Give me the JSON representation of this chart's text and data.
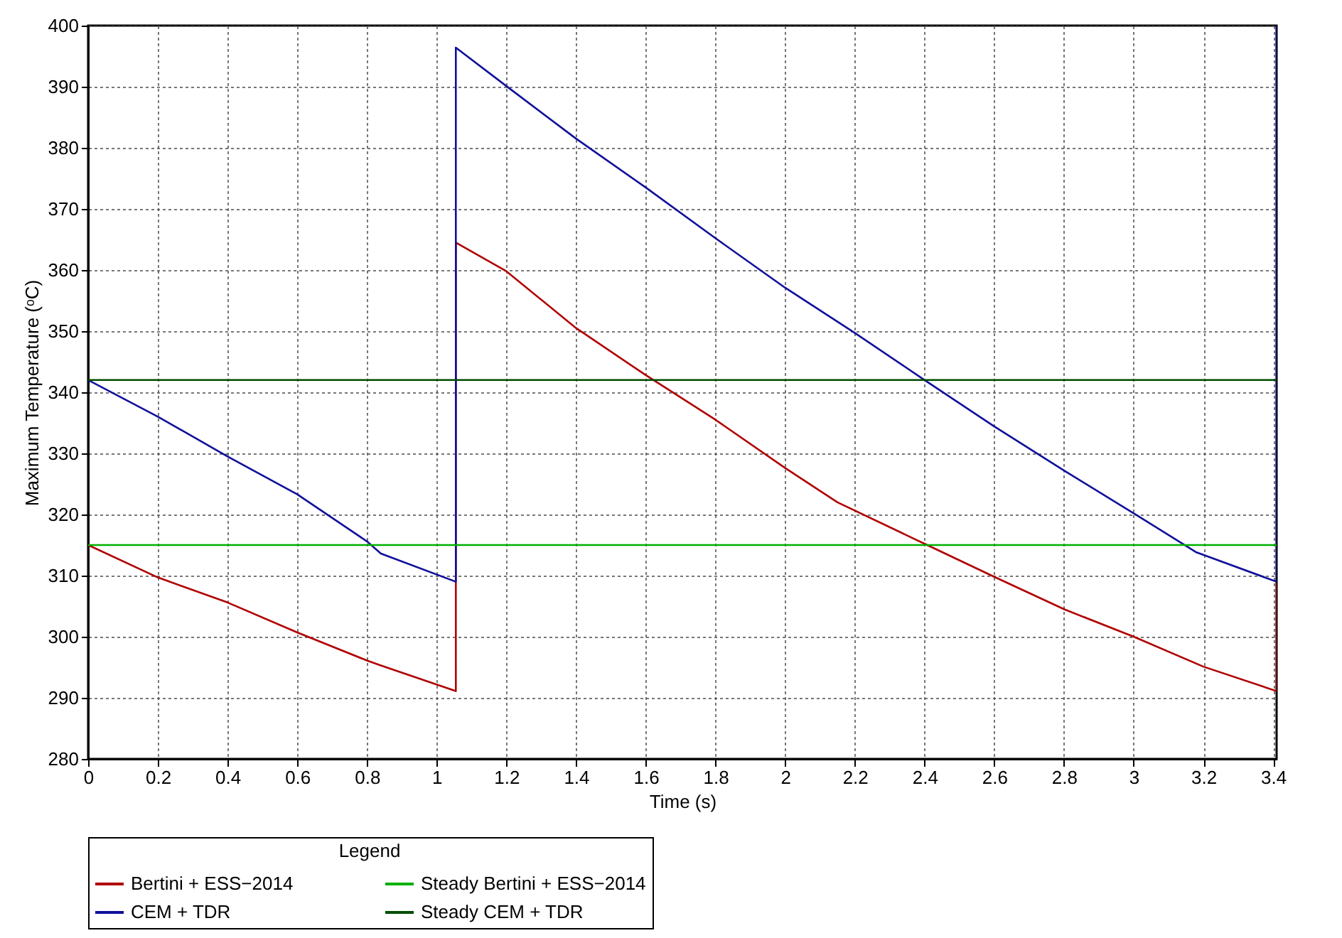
{
  "chart_data": {
    "type": "line",
    "xlabel": "Time (s)",
    "ylabel": "Maximum Temperature (ᵒC)",
    "legend_title": "Legend",
    "legend": "bottom",
    "grid": true,
    "line_style": "solid",
    "marker": "none",
    "xlim": [
      0,
      3.41
    ],
    "xticks": [
      0,
      0.2,
      0.4,
      0.6,
      0.8,
      1,
      1.2,
      1.4,
      1.6,
      1.8,
      2,
      2.2,
      2.4,
      2.6,
      2.8,
      3,
      3.2,
      3.4
    ],
    "ylim": [
      280,
      400
    ],
    "yticks": [
      280,
      290,
      300,
      310,
      320,
      330,
      340,
      350,
      360,
      370,
      380,
      390,
      400
    ],
    "series": [
      {
        "name": "Bertini + ESS−2014",
        "color": "#b00000",
        "x": [
          0,
          0.2,
          0.4,
          0.6,
          0.8,
          0.84,
          1.055,
          1.055,
          1.2,
          1.4,
          1.6,
          1.8,
          2.0,
          2.15,
          2.4,
          2.6,
          2.8,
          3.0,
          3.2,
          3.41,
          3.41
        ],
        "values": [
          315,
          309.7,
          305.6,
          300.7,
          296.1,
          295.3,
          291.1,
          364.5,
          359.8,
          350.5,
          342.8,
          335.5,
          327.6,
          322,
          315.2,
          309.8,
          304.5,
          300,
          295.1,
          291.1,
          309
        ]
      },
      {
        "name": "CEM + TDR",
        "color": "#10109a",
        "x": [
          0,
          0.2,
          0.4,
          0.6,
          0.8,
          0.84,
          1.055,
          1.055,
          1.2,
          1.4,
          1.6,
          1.8,
          2.0,
          2.2,
          2.4,
          2.6,
          2.8,
          3.0,
          3.18,
          3.41,
          3.41
        ],
        "values": [
          342,
          336,
          329.5,
          323.3,
          315.6,
          313.6,
          309,
          396.4,
          390.1,
          381.5,
          373.5,
          365.2,
          357.1,
          349.7,
          342,
          334.4,
          327.2,
          320.2,
          313.8,
          309,
          400
        ]
      },
      {
        "name": "Steady Bertini + ESS−2014",
        "color": "#00b000",
        "x": [
          0,
          3.41
        ],
        "values": [
          315,
          315
        ]
      },
      {
        "name": "Steady CEM + TDR",
        "color": "#004d00",
        "x": [
          0,
          3.41
        ],
        "values": [
          342,
          342
        ]
      }
    ]
  }
}
